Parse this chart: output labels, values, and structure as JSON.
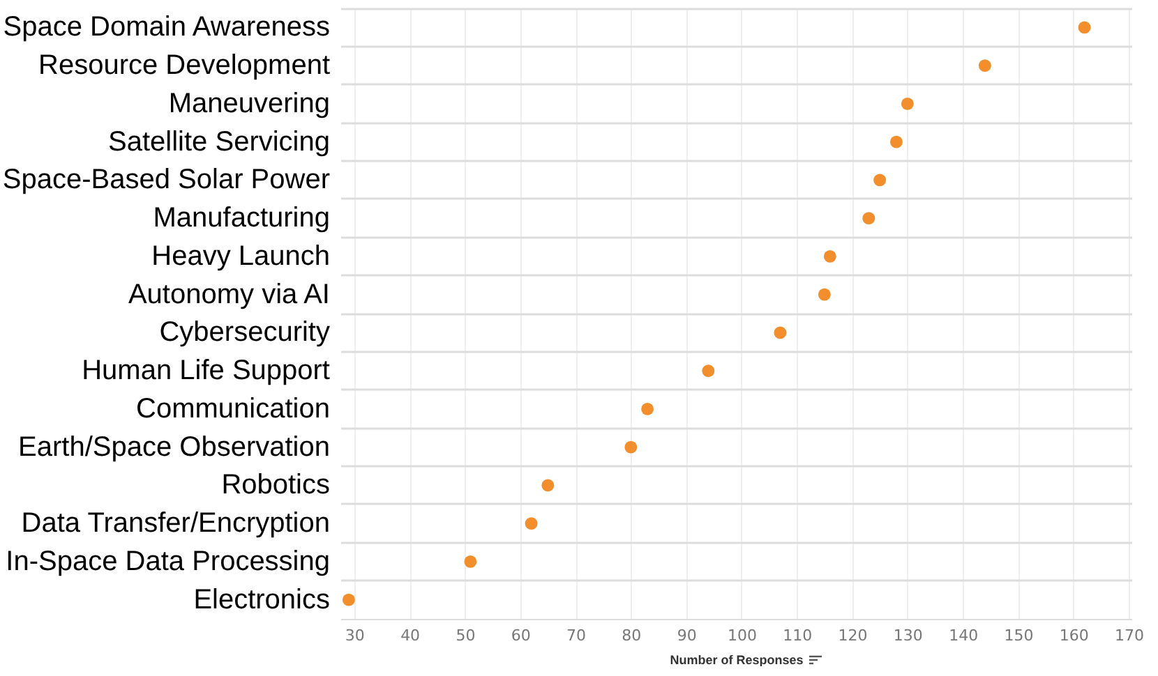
{
  "chart_data": {
    "type": "scatter",
    "xlabel": "Number of Responses",
    "categories": [
      "Space Domain Awareness",
      "Resource Development",
      "Maneuvering",
      "Satellite Servicing",
      "Space-Based Solar Power",
      "Manufacturing",
      "Heavy Launch",
      "Autonomy via AI",
      "Cybersecurity",
      "Human Life Support",
      "Communication",
      "Earth/Space Observation",
      "Robotics",
      "Data Transfer/Encryption",
      "In-Space Data Processing",
      "Electronics"
    ],
    "orientation": "horizontal",
    "series": [
      {
        "color": "#f28e2b",
        "values": [
          162,
          144,
          130,
          128,
          125,
          123,
          116,
          115,
          107,
          94,
          83,
          80,
          65,
          62,
          51,
          29
        ]
      }
    ],
    "xlim": [
      27.5,
      170.5
    ],
    "xticks": [
      30,
      40,
      50,
      60,
      70,
      80,
      90,
      100,
      110,
      120,
      130,
      140,
      150,
      160,
      170
    ],
    "grid": true,
    "marker": "circle",
    "legend": false
  }
}
